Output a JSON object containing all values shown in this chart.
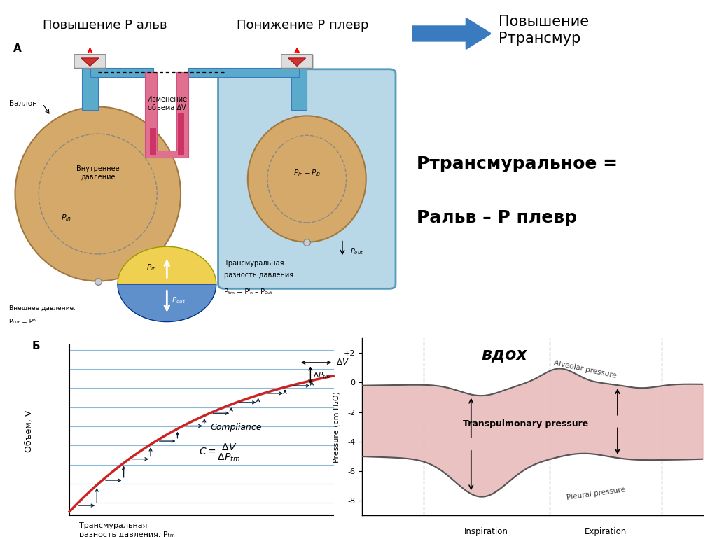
{
  "bg_color": "#ffffff",
  "title_left": "Повышение Р альв",
  "title_mid": "Понижение Р плевр",
  "title_right": "Повышение\nРтрансмур",
  "formula_line1": "Ртрансмуральное =",
  "formula_line2": "Ральв – Р плевр",
  "label_A": "А",
  "label_B": "Б",
  "label_balloon": "Баллон",
  "label_inner_p": "Внутреннее\nдавление",
  "label_delta_v": "Изменение\nобъема ΔV",
  "label_outer_p1": "Внешнее давление:",
  "label_outer_p2": "P₀ᵤₜ = Pᴮ",
  "label_transmural1": "Трансмуральная",
  "label_transmural2": "разность давления:",
  "label_ptm_formula": "Pₜₘ = Pᴵₙ – P₀ᵤₜ",
  "label_objemV": "Объем, V",
  "label_compliance": "Compliance",
  "label_x_axis1": "Трансмуральная",
  "label_x_axis2": "разность давления, Pₜₘ",
  "graph_title": "вдох",
  "ylabel_graph": "Pressure (cm H₂O)",
  "xlabel_insp": "Inspiration",
  "xlabel_exp": "Expiration",
  "label_alveolar": "Alveolar pressure",
  "label_pleural": "Pleural pressure",
  "label_transpulm": "Transpulmonary pressure",
  "yticks": [
    2,
    0,
    -2,
    -4,
    -6,
    -8
  ],
  "ytick_labels": [
    "+2",
    "0",
    "-2",
    "-4",
    "-6",
    "-8"
  ],
  "blue_arrow_color": "#3a7abf",
  "balloon_color": "#d4a96a",
  "balloon_edge": "#a07840",
  "tube_color": "#5aabcb",
  "tube_edge": "#3a7abf",
  "box_color": "#b8d8e8",
  "box_edge": "#5599bb",
  "pink_fill": "#e8b8b8",
  "pink_fill_alpha": 0.85,
  "compliance_bg": "#b8d8ec",
  "compliance_line": "#8ab8d8",
  "red_curve": "#cc2222",
  "step_arrow": "#003366",
  "gray_line": "#666666",
  "dashed_line": "#999999"
}
